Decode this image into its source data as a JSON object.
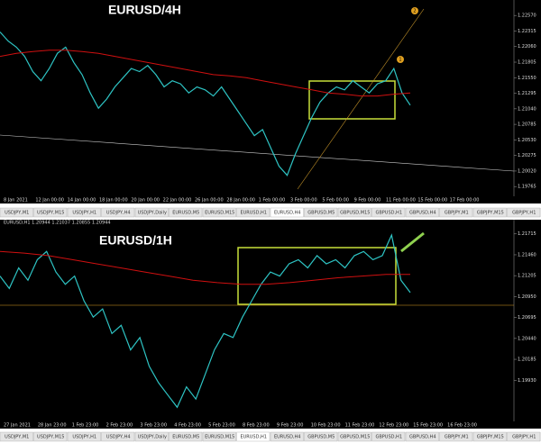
{
  "chart_data": [
    {
      "type": "line",
      "title": "EURUSD/4H",
      "markers": [
        "1",
        "2"
      ],
      "ylim": [
        1.1965,
        1.2275
      ],
      "yticks": [
        1.19765,
        {
          "value": 1.2002,
          "label": "1.20020"
        },
        1.20275,
        {
          "value": 1.2053,
          "label": "1.20530"
        },
        1.20785,
        {
          "value": 1.2104,
          "label": "1.21040"
        },
        1.21295,
        {
          "value": 1.2155,
          "label": "1.21550"
        },
        1.21805,
        {
          "value": 1.2206,
          "label": "1.22060"
        },
        1.22315,
        {
          "value": 1.2257,
          "label": "1.22570"
        }
      ],
      "x_labels": [
        "8 Jan 2021",
        "12 Jan 00:00",
        "14 Jan 00:00",
        "18 Jan 00:00",
        "20 Jan 00:00",
        "22 Jan 00:00",
        "26 Jan 00:00",
        "28 Jan 00:00",
        "1 Feb 00:00",
        "3 Feb 00:00",
        "5 Feb 00:00",
        "9 Feb 00:00",
        "11 Feb 00:00",
        "15 Feb 00:00",
        "17 Feb 00:00"
      ],
      "tabs": [
        "USDJPY,M1",
        "USDJPY,M15",
        "USDJPY,H1",
        "USDJPY,H4",
        "USDJPY,Daily",
        "EURUSD,M5",
        "EURUSD,M15",
        "EURUSD,H1",
        "EURUSD,H4",
        "GBPUSD,M5",
        "GBPUSD,M15",
        "GBPUSD,H1",
        "GBPUSD,H4",
        "GBPJPY,M1",
        "GBPJPY,M15",
        "GBPJPY,H1"
      ],
      "active_tab": 8,
      "series": [
        {
          "color": "#2ec4c4",
          "values": [
            1.223,
            1.2215,
            1.2205,
            1.219,
            1.2165,
            1.215,
            1.217,
            1.2195,
            1.2205,
            1.218,
            1.216,
            1.213,
            1.2105,
            1.212,
            1.214,
            1.2155,
            1.217,
            1.2165,
            1.2175,
            1.216,
            1.214,
            1.215,
            1.2145,
            1.213,
            1.214,
            1.2135,
            1.2125,
            1.214,
            1.212,
            1.21,
            1.208,
            1.206,
            1.207,
            1.204,
            1.201,
            1.1995,
            1.203,
            1.206,
            1.209,
            1.2115,
            1.213,
            1.214,
            1.2135,
            1.215,
            1.214,
            1.213,
            1.2145,
            1.215,
            1.217,
            1.213,
            1.211
          ]
        },
        {
          "color": "#d01010",
          "values": [
            1.219,
            1.2195,
            1.2198,
            1.22,
            1.22,
            1.2198,
            1.2195,
            1.219,
            1.2185,
            1.218,
            1.2175,
            1.217,
            1.2165,
            1.216,
            1.2158,
            1.2155,
            1.215,
            1.2145,
            1.214,
            1.2135,
            1.213,
            1.2128,
            1.2125,
            1.2125,
            1.2128,
            1.213
          ]
        }
      ]
    },
    {
      "type": "line",
      "title": "EURUSD/1H",
      "header": "EURUSD,H1  1.20944 1.21037 1.20855 1.20944",
      "ylim": [
        1.1945,
        1.218
      ],
      "yticks": [
        {
          "value": 1.1993,
          "label": "1.19930"
        },
        1.20185,
        {
          "value": 1.2044,
          "label": "1.20440"
        },
        1.20695,
        {
          "value": 1.2095,
          "label": "1.20950"
        },
        1.21205,
        {
          "value": 1.2146,
          "label": "1.21460"
        },
        1.21715
      ],
      "x_labels": [
        "27 Jan 2021",
        "28 Jan 23:00",
        "1 Feb 23:00",
        "2 Feb 23:00",
        "3 Feb 23:00",
        "4 Feb 23:00",
        "5 Feb 23:00",
        "8 Feb 23:00",
        "9 Feb 23:00",
        "10 Feb 23:00",
        "11 Feb 23:00",
        "12 Feb 23:00",
        "15 Feb 23:00",
        "16 Feb 23:00"
      ],
      "tabs": [
        "USDJPY,M1",
        "USDJPY,M15",
        "USDJPY,H1",
        "USDJPY,H4",
        "USDJPY,Daily",
        "EURUSD,M5",
        "EURUSD,M15",
        "EURUSD,H1",
        "EURUSD,H4",
        "GBPUSD,M5",
        "GBPUSD,M15",
        "GBPUSD,H1",
        "GBPUSD,H4",
        "GBPJPY,M1",
        "GBPJPY,M15",
        "GBPJPY,H1"
      ],
      "active_tab": 7,
      "series": [
        {
          "color": "#2ec4c4",
          "values": [
            1.212,
            1.2105,
            1.213,
            1.2115,
            1.214,
            1.215,
            1.2125,
            1.211,
            1.212,
            1.209,
            1.207,
            1.208,
            1.205,
            1.206,
            1.203,
            1.2045,
            1.201,
            1.199,
            1.1975,
            1.196,
            1.1985,
            1.197,
            1.2,
            1.203,
            1.205,
            1.2045,
            1.207,
            1.209,
            1.211,
            1.2125,
            1.212,
            1.2135,
            1.214,
            1.213,
            1.2145,
            1.2135,
            1.214,
            1.213,
            1.2145,
            1.215,
            1.214,
            1.2145,
            1.217,
            1.2115,
            1.21
          ]
        },
        {
          "color": "#d01010",
          "values": [
            1.215,
            1.2148,
            1.2145,
            1.214,
            1.2135,
            1.213,
            1.2125,
            1.212,
            1.2115,
            1.2112,
            1.211,
            1.211,
            1.2112,
            1.2115,
            1.2118,
            1.212,
            1.2122,
            1.2122
          ]
        }
      ]
    }
  ]
}
